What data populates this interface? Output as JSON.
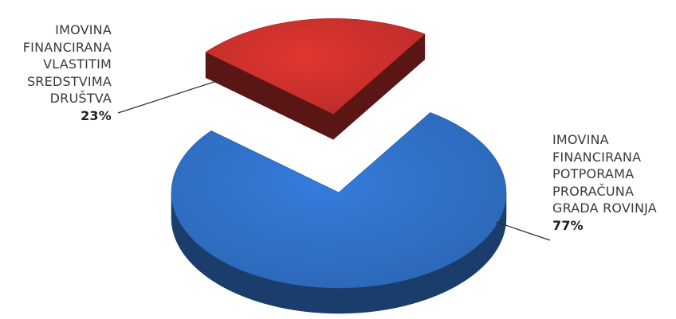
{
  "chart_data": {
    "type": "pie",
    "slices": [
      {
        "label_lines": [
          "IMOVINA",
          "FINANCIRANA",
          "VLASTITIM",
          "SREDSTVIMA",
          "DRUŠTVA"
        ],
        "value": 23,
        "value_label": "23%",
        "color": "#c9302c",
        "exploded": true
      },
      {
        "label_lines": [
          "IMOVINA",
          "FINANCIRANA",
          "POTPORAMA",
          "PRORAČUNA",
          "GRADA ROVINJA"
        ],
        "value": 77,
        "value_label": "77%",
        "color": "#2f6fc4",
        "exploded": false
      }
    ],
    "style": "3d"
  }
}
